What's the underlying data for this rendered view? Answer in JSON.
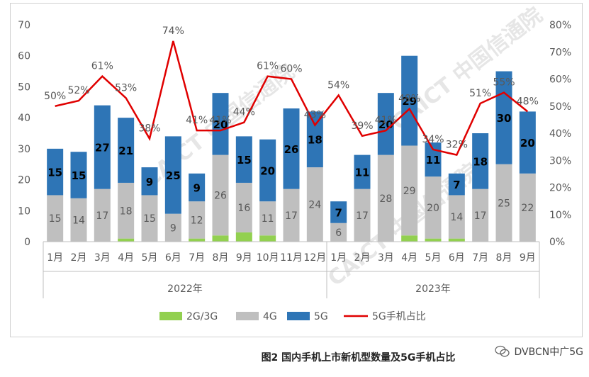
{
  "caption": "图2  国内手机上市新机型数量及5G手机占比",
  "source_mark": "DVBCN中广5G",
  "watermark_logo": "CAICT 中国信通院",
  "colors": {
    "c2g3g": "#92d050",
    "c4g": "#bfbfbf",
    "c5g": "#2e75b6",
    "share": "#e00000"
  },
  "chart_data": {
    "type": "bar",
    "stacked": true,
    "categories": [
      "1月",
      "2月",
      "3月",
      "4月",
      "5月",
      "6月",
      "7月",
      "8月",
      "9月",
      "10月",
      "11月",
      "12月",
      "1月",
      "2月",
      "3月",
      "4月",
      "5月",
      "6月",
      "7月",
      "8月",
      "9月"
    ],
    "groups": [
      {
        "label": "2022年",
        "from": 0,
        "to": 11
      },
      {
        "label": "2023年",
        "from": 12,
        "to": 20
      }
    ],
    "series": [
      {
        "name": "2G/3G",
        "type": "bar",
        "axis": "left",
        "values": [
          0,
          0,
          0,
          1,
          0,
          0,
          1,
          2,
          3,
          2,
          0,
          0,
          0,
          0,
          0,
          2,
          1,
          1,
          0,
          0,
          0
        ]
      },
      {
        "name": "4G",
        "type": "bar",
        "axis": "left",
        "values": [
          15,
          14,
          17,
          18,
          15,
          9,
          12,
          26,
          16,
          11,
          17,
          24,
          6,
          17,
          28,
          29,
          20,
          14,
          17,
          25,
          22
        ]
      },
      {
        "name": "5G",
        "type": "bar",
        "axis": "left",
        "values": [
          15,
          15,
          27,
          21,
          9,
          25,
          9,
          20,
          15,
          20,
          26,
          18,
          7,
          11,
          20,
          29,
          11,
          7,
          18,
          30,
          20
        ]
      },
      {
        "name": "5G手机占比",
        "type": "line",
        "axis": "right",
        "values": [
          50,
          52,
          61,
          53,
          38,
          74,
          41,
          41,
          44,
          61,
          60,
          43,
          54,
          39,
          41,
          49,
          34,
          32,
          51,
          55,
          48
        ]
      }
    ],
    "bar_labels_4g": [
      "15",
      "14",
      "17",
      "18",
      "15",
      "9",
      "12",
      "26",
      "16",
      "11",
      "17",
      "24",
      "6",
      "17",
      "28",
      "29",
      "20",
      "14",
      "17",
      "25",
      "22"
    ],
    "bar_labels_5g": [
      "15",
      "15",
      "27",
      "21",
      "9",
      "25",
      "9",
      "20",
      "15",
      "20",
      "26",
      "18",
      "7",
      "11",
      "20",
      "29",
      "11",
      "7",
      "18",
      "30",
      "20"
    ],
    "line_labels": [
      "50%",
      "52%",
      "61%",
      "53%",
      "38%",
      "74%",
      "41%",
      "41%",
      "44%",
      "61%",
      "60%",
      "43%",
      "54%",
      "39%",
      "41%",
      "49%",
      "34%",
      "32%",
      "51%",
      "55%",
      "48%"
    ],
    "y_left": {
      "min": 0,
      "max": 70,
      "ticks": [
        "0",
        "10",
        "20",
        "30",
        "40",
        "50",
        "60",
        "70"
      ]
    },
    "y_right": {
      "min": 0,
      "max": 80,
      "ticks": [
        "0%",
        "10%",
        "20%",
        "30%",
        "40%",
        "50%",
        "60%",
        "70%",
        "80%"
      ]
    },
    "legend": [
      "2G/3G",
      "4G",
      "5G",
      "5G手机占比"
    ],
    "legend_position": "bottom",
    "grid": false
  }
}
